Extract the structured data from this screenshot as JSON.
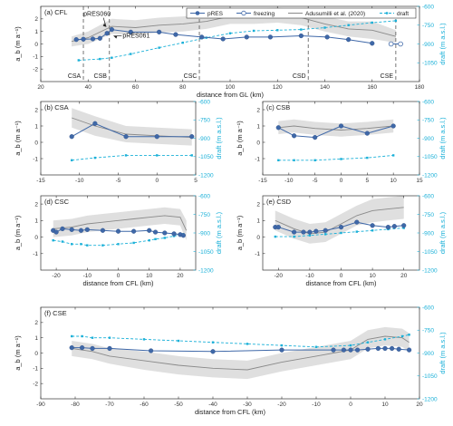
{
  "colors": {
    "pres": "#3f68a8",
    "freezing": "#3f68a8",
    "adusumilli": "#8a8a8a",
    "band": "#d9d9d9",
    "draft": "#1ab0d8",
    "axes": "#333333",
    "dashed": "#555555"
  },
  "legend": {
    "items": [
      {
        "key": "pres",
        "label": "pRES"
      },
      {
        "key": "freezing",
        "label": "freezing"
      },
      {
        "key": "adusumilli",
        "label": "Adusumilli et al. (2020)"
      },
      {
        "key": "draft",
        "label": "draft"
      }
    ]
  },
  "y_label_left": "a_b (m a⁻¹)",
  "y_label_right": "draft (m a.s.l.)",
  "chart_data": [
    {
      "id": "a",
      "type": "line",
      "title": "(a) CFL",
      "xlabel": "distance from GL (km)",
      "xlim": [
        20,
        180
      ],
      "xticks": [
        20,
        40,
        60,
        80,
        100,
        120,
        140,
        160,
        180
      ],
      "ylim_left": [
        -3,
        3
      ],
      "yticks_left": [
        -2,
        -1,
        0,
        1,
        2
      ],
      "ylim_right": [
        -1200,
        -600
      ],
      "yticks_right": [
        -600,
        -750,
        -900,
        -1050
      ],
      "pres": {
        "x": [
          35,
          38,
          42,
          45,
          48,
          50,
          58,
          70,
          77,
          88,
          97,
          107,
          117,
          130,
          141,
          150,
          160
        ],
        "y": [
          0.35,
          0.38,
          0.4,
          0.45,
          0.85,
          1.15,
          0.95,
          0.95,
          0.75,
          0.55,
          0.4,
          0.55,
          0.55,
          0.65,
          0.55,
          0.35,
          0.05
        ]
      },
      "freezing": {
        "x": [
          168,
          172
        ],
        "y": [
          0.0,
          0.0
        ]
      },
      "adusumilli": {
        "x": [
          33,
          40,
          50,
          60,
          70,
          80,
          90,
          100,
          110,
          120,
          130,
          140,
          150,
          160,
          170
        ],
        "y": [
          0.2,
          0.5,
          1.4,
          1.3,
          1.5,
          1.6,
          1.8,
          2.2,
          2.2,
          2.3,
          2.1,
          1.6,
          1.2,
          1.1,
          0.6
        ]
      },
      "adusumilli_band": {
        "x": [
          33,
          40,
          50,
          60,
          70,
          80,
          90,
          100,
          110,
          120,
          130,
          140,
          150,
          160,
          170
        ],
        "lower": [
          -0.2,
          0.0,
          0.8,
          0.7,
          0.9,
          1.0,
          1.2,
          1.6,
          1.6,
          1.7,
          1.5,
          1.0,
          0.6,
          0.4,
          0.1
        ],
        "upper": [
          0.6,
          1.0,
          2.0,
          1.9,
          2.1,
          2.2,
          2.4,
          2.8,
          2.8,
          2.9,
          2.7,
          2.2,
          1.8,
          1.8,
          1.1
        ]
      },
      "draft": {
        "x": [
          36,
          45,
          50,
          58,
          70,
          80,
          90,
          100,
          110,
          120,
          130,
          140,
          150,
          160,
          170
        ],
        "y": [
          -1030,
          -1020,
          -1010,
          -980,
          -930,
          -890,
          -850,
          -815,
          -795,
          -790,
          -785,
          -770,
          -750,
          -730,
          -715
        ]
      },
      "vlines": [
        {
          "x": 38,
          "label": "CSA"
        },
        {
          "x": 49,
          "label": "CSB"
        },
        {
          "x": 87,
          "label": "CSC"
        },
        {
          "x": 133,
          "label": "CSD"
        },
        {
          "x": 170,
          "label": "CSE"
        }
      ],
      "annotations": [
        {
          "text": "pRES060",
          "x": 48,
          "y": 1.15
        },
        {
          "text": "pRES061",
          "x": 50,
          "y": 0.35
        }
      ]
    },
    {
      "id": "b",
      "type": "line",
      "title": "(b) CSA",
      "xlabel": "",
      "xlim": [
        -15,
        5
      ],
      "xticks": [
        -15,
        -10,
        -5,
        0,
        5
      ],
      "ylim_left": [
        -2,
        2.5
      ],
      "yticks_left": [
        -1,
        0,
        1,
        2
      ],
      "ylim_right": [
        -1200,
        -600
      ],
      "yticks_right": [
        -600,
        -750,
        -900,
        -1050,
        -1200
      ],
      "pres": {
        "x": [
          -11,
          -8,
          -4,
          0,
          4.5
        ],
        "y": [
          0.35,
          1.15,
          0.35,
          0.35,
          0.35
        ]
      },
      "adusumilli": {
        "x": [
          -11,
          -8,
          -4,
          0,
          4.5
        ],
        "y": [
          1.5,
          1.0,
          0.5,
          0.4,
          0.3
        ]
      },
      "adusumilli_band": {
        "x": [
          -11,
          -8,
          -4,
          0,
          4.5
        ],
        "lower": [
          0.9,
          0.4,
          0.0,
          -0.1,
          -0.2
        ],
        "upper": [
          2.1,
          1.6,
          1.0,
          0.9,
          0.8
        ]
      },
      "draft": {
        "x": [
          -11,
          -8,
          -4,
          0,
          4.5
        ],
        "y": [
          -1080,
          -1060,
          -1040,
          -1040,
          -1040
        ]
      }
    },
    {
      "id": "c",
      "type": "line",
      "title": "(c) CSB",
      "xlabel": "",
      "xlim": [
        -15,
        15
      ],
      "xticks": [
        -15,
        -10,
        -5,
        0,
        5,
        10,
        15
      ],
      "ylim_left": [
        -2,
        2.5
      ],
      "yticks_left": [
        -1,
        0,
        1,
        2
      ],
      "ylim_right": [
        -1200,
        -600
      ],
      "yticks_right": [
        -600,
        -750,
        -900,
        -1050,
        -1200
      ],
      "pres": {
        "x": [
          -12,
          -9,
          -5,
          0,
          5,
          10
        ],
        "y": [
          0.9,
          0.4,
          0.3,
          1.0,
          0.55,
          1.0
        ]
      },
      "adusumilli": {
        "x": [
          -12,
          -9,
          -5,
          0,
          5,
          10
        ],
        "y": [
          0.9,
          1.0,
          0.85,
          0.75,
          0.85,
          1.0
        ]
      },
      "adusumilli_band": {
        "x": [
          -12,
          -9,
          -5,
          0,
          5,
          10
        ],
        "lower": [
          0.5,
          0.6,
          0.45,
          0.35,
          0.45,
          0.6
        ],
        "upper": [
          1.3,
          1.4,
          1.25,
          1.15,
          1.25,
          1.4
        ]
      },
      "draft": {
        "x": [
          -12,
          -9,
          -5,
          0,
          5,
          10
        ],
        "y": [
          -1080,
          -1080,
          -1080,
          -1070,
          -1060,
          -1040
        ]
      }
    },
    {
      "id": "d",
      "type": "line",
      "title": "(d) CSC",
      "xlabel": "distance from CFL (km)",
      "xlim": [
        -25,
        25
      ],
      "xticks": [
        -20,
        -10,
        0,
        10,
        20
      ],
      "ylim_left": [
        -2,
        2.5
      ],
      "yticks_left": [
        -1,
        0,
        1,
        2
      ],
      "ylim_right": [
        -1200,
        -600
      ],
      "yticks_right": [
        -600,
        -750,
        -900,
        -1050,
        -1200
      ],
      "pres": {
        "x": [
          -21,
          -20,
          -18,
          -15,
          -12,
          -10,
          -5,
          0,
          5,
          10,
          12,
          15,
          18,
          20,
          21
        ],
        "y": [
          0.4,
          0.3,
          0.5,
          0.45,
          0.4,
          0.45,
          0.4,
          0.35,
          0.35,
          0.4,
          0.3,
          0.25,
          0.2,
          0.15,
          0.1
        ]
      },
      "adusumilli": {
        "x": [
          -21,
          -15,
          -10,
          -5,
          0,
          5,
          10,
          15,
          20,
          22
        ],
        "y": [
          0.5,
          0.6,
          0.8,
          0.9,
          1.0,
          1.1,
          1.2,
          1.3,
          1.2,
          0.4
        ]
      },
      "adusumilli_band": {
        "x": [
          -21,
          -15,
          -10,
          -5,
          0,
          5,
          10,
          15,
          20,
          22
        ],
        "lower": [
          0.0,
          0.1,
          0.3,
          0.4,
          0.5,
          0.6,
          0.7,
          0.8,
          0.7,
          -0.2
        ],
        "upper": [
          1.0,
          1.1,
          1.3,
          1.4,
          1.5,
          1.6,
          1.7,
          1.8,
          1.7,
          1.0
        ]
      },
      "draft": {
        "x": [
          -21,
          -18,
          -15,
          -12,
          -10,
          -5,
          0,
          5,
          10,
          12,
          15,
          18,
          20,
          21
        ],
        "y": [
          -960,
          -970,
          -990,
          -990,
          -1000,
          -1000,
          -990,
          -980,
          -960,
          -950,
          -940,
          -925,
          -915,
          -910
        ]
      }
    },
    {
      "id": "e",
      "type": "line",
      "title": "(e) CSD",
      "xlabel": "distance from CFL (km)",
      "xlim": [
        -25,
        25
      ],
      "xticks": [
        -20,
        -10,
        0,
        10,
        20
      ],
      "ylim_left": [
        -2,
        2.5
      ],
      "yticks_left": [
        -1,
        0,
        1,
        2
      ],
      "ylim_right": [
        -1200,
        -600
      ],
      "yticks_right": [
        -600,
        -750,
        -900,
        -1050,
        -1200
      ],
      "pres": {
        "x": [
          -21,
          -20,
          -15,
          -12,
          -10,
          -8,
          -5,
          0,
          5,
          10,
          15,
          17,
          20
        ],
        "y": [
          0.6,
          0.6,
          0.3,
          0.3,
          0.3,
          0.35,
          0.4,
          0.6,
          0.9,
          0.7,
          0.6,
          0.65,
          0.7
        ]
      },
      "adusumilli": {
        "x": [
          -21,
          -15,
          -10,
          -5,
          0,
          5,
          10,
          15,
          20
        ],
        "y": [
          1.0,
          0.5,
          0.2,
          0.3,
          0.8,
          1.3,
          1.6,
          1.7,
          1.8
        ]
      },
      "adusumilli_band": {
        "x": [
          -21,
          -15,
          -10,
          -5,
          0,
          5,
          10,
          15,
          20
        ],
        "lower": [
          0.4,
          -0.1,
          -0.4,
          -0.3,
          0.2,
          0.7,
          0.9,
          1.0,
          1.1
        ],
        "upper": [
          1.6,
          1.1,
          0.8,
          0.9,
          1.4,
          1.9,
          2.3,
          2.4,
          2.5
        ]
      },
      "draft": {
        "x": [
          -21,
          -15,
          -10,
          -5,
          0,
          5,
          10,
          15,
          20
        ],
        "y": [
          -930,
          -930,
          -920,
          -910,
          -900,
          -890,
          -880,
          -870,
          -860
        ]
      }
    },
    {
      "id": "f",
      "type": "line",
      "title": "(f) CSE",
      "xlabel": "distance from CFL (km)",
      "xlim": [
        -90,
        20
      ],
      "xticks": [
        -90,
        -80,
        -70,
        -60,
        -50,
        -40,
        -30,
        -20,
        -10,
        0,
        10,
        20
      ],
      "ylim_left": [
        -3,
        3
      ],
      "yticks_left": [
        -2,
        -1,
        0,
        1,
        2
      ],
      "ylim_right": [
        -1200,
        -600
      ],
      "yticks_right": [
        -600,
        -750,
        -900,
        -1050,
        -1200
      ],
      "pres": {
        "x": [
          -81,
          -78,
          -75,
          -70,
          -58,
          -40,
          -20,
          -5,
          -2,
          0,
          2,
          5,
          8,
          10,
          12,
          14,
          17
        ],
        "y": [
          0.35,
          0.35,
          0.3,
          0.3,
          0.15,
          0.1,
          0.2,
          0.2,
          0.2,
          0.2,
          0.2,
          0.25,
          0.3,
          0.3,
          0.3,
          0.25,
          0.2
        ]
      },
      "adusumilli": {
        "x": [
          -81,
          -75,
          -70,
          -60,
          -50,
          -40,
          -30,
          -20,
          -10,
          0,
          5,
          10,
          15,
          17
        ],
        "y": [
          0.3,
          0.1,
          -0.2,
          -0.5,
          -0.8,
          -1.0,
          -1.1,
          -0.6,
          -0.2,
          0.2,
          0.9,
          1.1,
          1.0,
          0.7
        ]
      },
      "adusumilli_band": {
        "x": [
          -81,
          -75,
          -70,
          -60,
          -50,
          -40,
          -30,
          -20,
          -10,
          0,
          5,
          10,
          15,
          17
        ],
        "lower": [
          -0.2,
          -0.4,
          -0.7,
          -1.1,
          -1.4,
          -1.6,
          -1.7,
          -1.2,
          -0.8,
          -0.4,
          0.3,
          0.5,
          0.4,
          0.1
        ],
        "upper": [
          0.8,
          0.6,
          0.3,
          0.1,
          -0.2,
          -0.4,
          -0.5,
          0.0,
          0.4,
          0.8,
          1.5,
          1.7,
          1.6,
          1.3
        ]
      },
      "draft": {
        "x": [
          -81,
          -78,
          -75,
          -70,
          -60,
          -50,
          -40,
          -30,
          -20,
          -10,
          0,
          5,
          10,
          15,
          17
        ],
        "y": [
          -790,
          -790,
          -800,
          -800,
          -810,
          -820,
          -830,
          -840,
          -850,
          -860,
          -850,
          -830,
          -810,
          -790,
          -780
        ]
      }
    }
  ]
}
